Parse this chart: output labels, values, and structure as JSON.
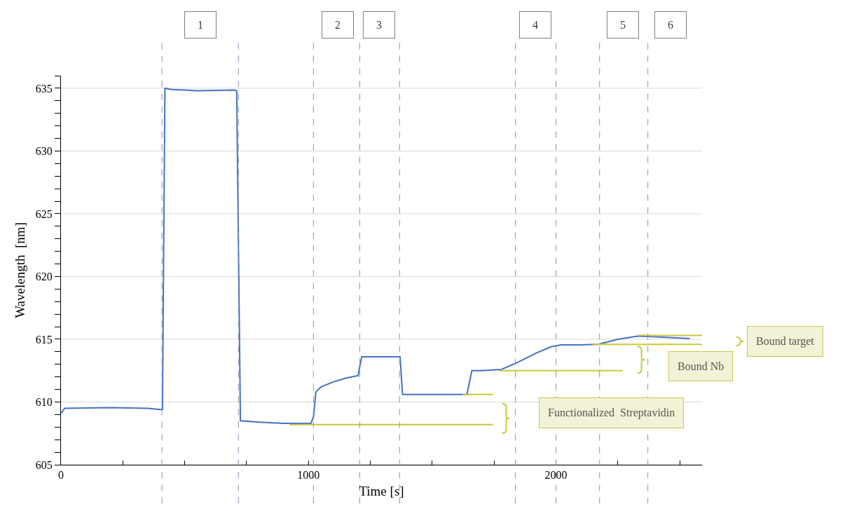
{
  "chart_data": {
    "type": "line",
    "xlabel": "Time [s]",
    "ylabel": "Wavelength  [nm]",
    "xlim": [
      0,
      2590
    ],
    "ylim": [
      605,
      636
    ],
    "xticks": [
      0,
      {
        "value": 250,
        "label": null
      },
      {
        "value": 500,
        "label": null
      },
      {
        "value": 750,
        "label": null
      },
      1000,
      {
        "value": 1250,
        "label": null
      },
      {
        "value": 1500,
        "label": null
      },
      {
        "value": 1750,
        "label": null
      },
      2000,
      {
        "value": 2250,
        "label": null
      },
      {
        "value": 2500,
        "label": null
      }
    ],
    "yticks": [
      605,
      {
        "value": 606,
        "label": null
      },
      {
        "value": 607,
        "label": null
      },
      {
        "value": 608,
        "label": null
      },
      {
        "value": 609,
        "label": null
      },
      610,
      {
        "value": 611,
        "label": null
      },
      {
        "value": 612,
        "label": null
      },
      {
        "value": 613,
        "label": null
      },
      {
        "value": 614,
        "label": null
      },
      615,
      {
        "value": 616,
        "label": null
      },
      {
        "value": 617,
        "label": null
      },
      {
        "value": 618,
        "label": null
      },
      {
        "value": 619,
        "label": null
      },
      620,
      {
        "value": 621,
        "label": null
      },
      {
        "value": 622,
        "label": null
      },
      {
        "value": 623,
        "label": null
      },
      {
        "value": 624,
        "label": null
      },
      625,
      {
        "value": 626,
        "label": null
      },
      {
        "value": 627,
        "label": null
      },
      {
        "value": 628,
        "label": null
      },
      {
        "value": 629,
        "label": null
      },
      630,
      {
        "value": 631,
        "label": null
      },
      {
        "value": 632,
        "label": null
      },
      {
        "value": 633,
        "label": null
      },
      {
        "value": 634,
        "label": null
      },
      635,
      {
        "value": 636,
        "label": null
      }
    ],
    "grid": "y",
    "marker": "none",
    "line_style": "solid",
    "series": [
      {
        "color": "#4472c4",
        "x": [
          0,
          15,
          200,
          350,
          400,
          410,
          420,
          450,
          550,
          700,
          710,
          725,
          800,
          900,
          1010,
          1020,
          1030,
          1050,
          1100,
          1150,
          1200,
          1215,
          1300,
          1370,
          1380,
          1500,
          1640,
          1660,
          1700,
          1780,
          1850,
          1920,
          1980,
          2020,
          2100,
          2170,
          2250,
          2330,
          2400,
          2500,
          2540
        ],
        "values": [
          609.1,
          609.5,
          609.55,
          609.5,
          609.4,
          609.4,
          635.0,
          634.9,
          634.8,
          634.85,
          634.8,
          608.5,
          608.4,
          608.3,
          608.3,
          608.8,
          610.8,
          611.2,
          611.6,
          611.9,
          612.1,
          613.6,
          613.6,
          613.6,
          610.6,
          610.6,
          610.6,
          612.5,
          612.5,
          612.6,
          613.2,
          613.9,
          614.4,
          614.55,
          614.55,
          614.6,
          615.0,
          615.25,
          615.2,
          615.1,
          615.05
        ]
      },
      {
        "color": "#c8c83c",
        "x": [
          923,
          1745
        ],
        "values": [
          608.2,
          608.2
        ]
      },
      {
        "color": "#c8c83c",
        "x": [
          1623,
          1745
        ],
        "values": [
          610.6,
          610.6
        ]
      },
      {
        "color": "#c8c83c",
        "x": [
          1770,
          2269
        ],
        "values": [
          612.5,
          612.5
        ]
      },
      {
        "color": "#c8c83c",
        "x": [
          2147,
          2590
        ],
        "values": [
          614.6,
          614.6
        ]
      },
      {
        "color": "#c8c83c",
        "x": [
          2331,
          2590
        ],
        "values": [
          615.3,
          615.3
        ]
      }
    ],
    "ref_lines": [
      {
        "axis": "x",
        "value": 408,
        "color": "#8a8fb8",
        "line_style": "dashed"
      },
      {
        "axis": "x",
        "value": 717,
        "color": "#8a8fb8",
        "line_style": "dashed"
      },
      {
        "axis": "x",
        "value": 1020,
        "color": "#8a8fb8",
        "line_style": "dashed"
      },
      {
        "axis": "x",
        "value": 1207,
        "color": "#8a8fb8",
        "line_style": "dashed"
      },
      {
        "axis": "x",
        "value": 1368,
        "color": "#8a8fb8",
        "line_style": "dashed"
      },
      {
        "axis": "x",
        "value": 1836,
        "color": "#8a8fb8",
        "line_style": "dashed"
      },
      {
        "axis": "x",
        "value": 2000,
        "color": "#8a8fb8",
        "line_style": "dashed"
      },
      {
        "axis": "x",
        "value": 2176,
        "color": "#8a8fb8",
        "line_style": "dashed"
      },
      {
        "axis": "x",
        "value": 2371,
        "color": "#8a8fb8",
        "line_style": "dashed"
      }
    ],
    "annotations": [
      "1",
      "2",
      "3",
      "4",
      "5",
      "6",
      "Functionalized  Streptavidin",
      "Bound Nb",
      "Bound target"
    ]
  }
}
